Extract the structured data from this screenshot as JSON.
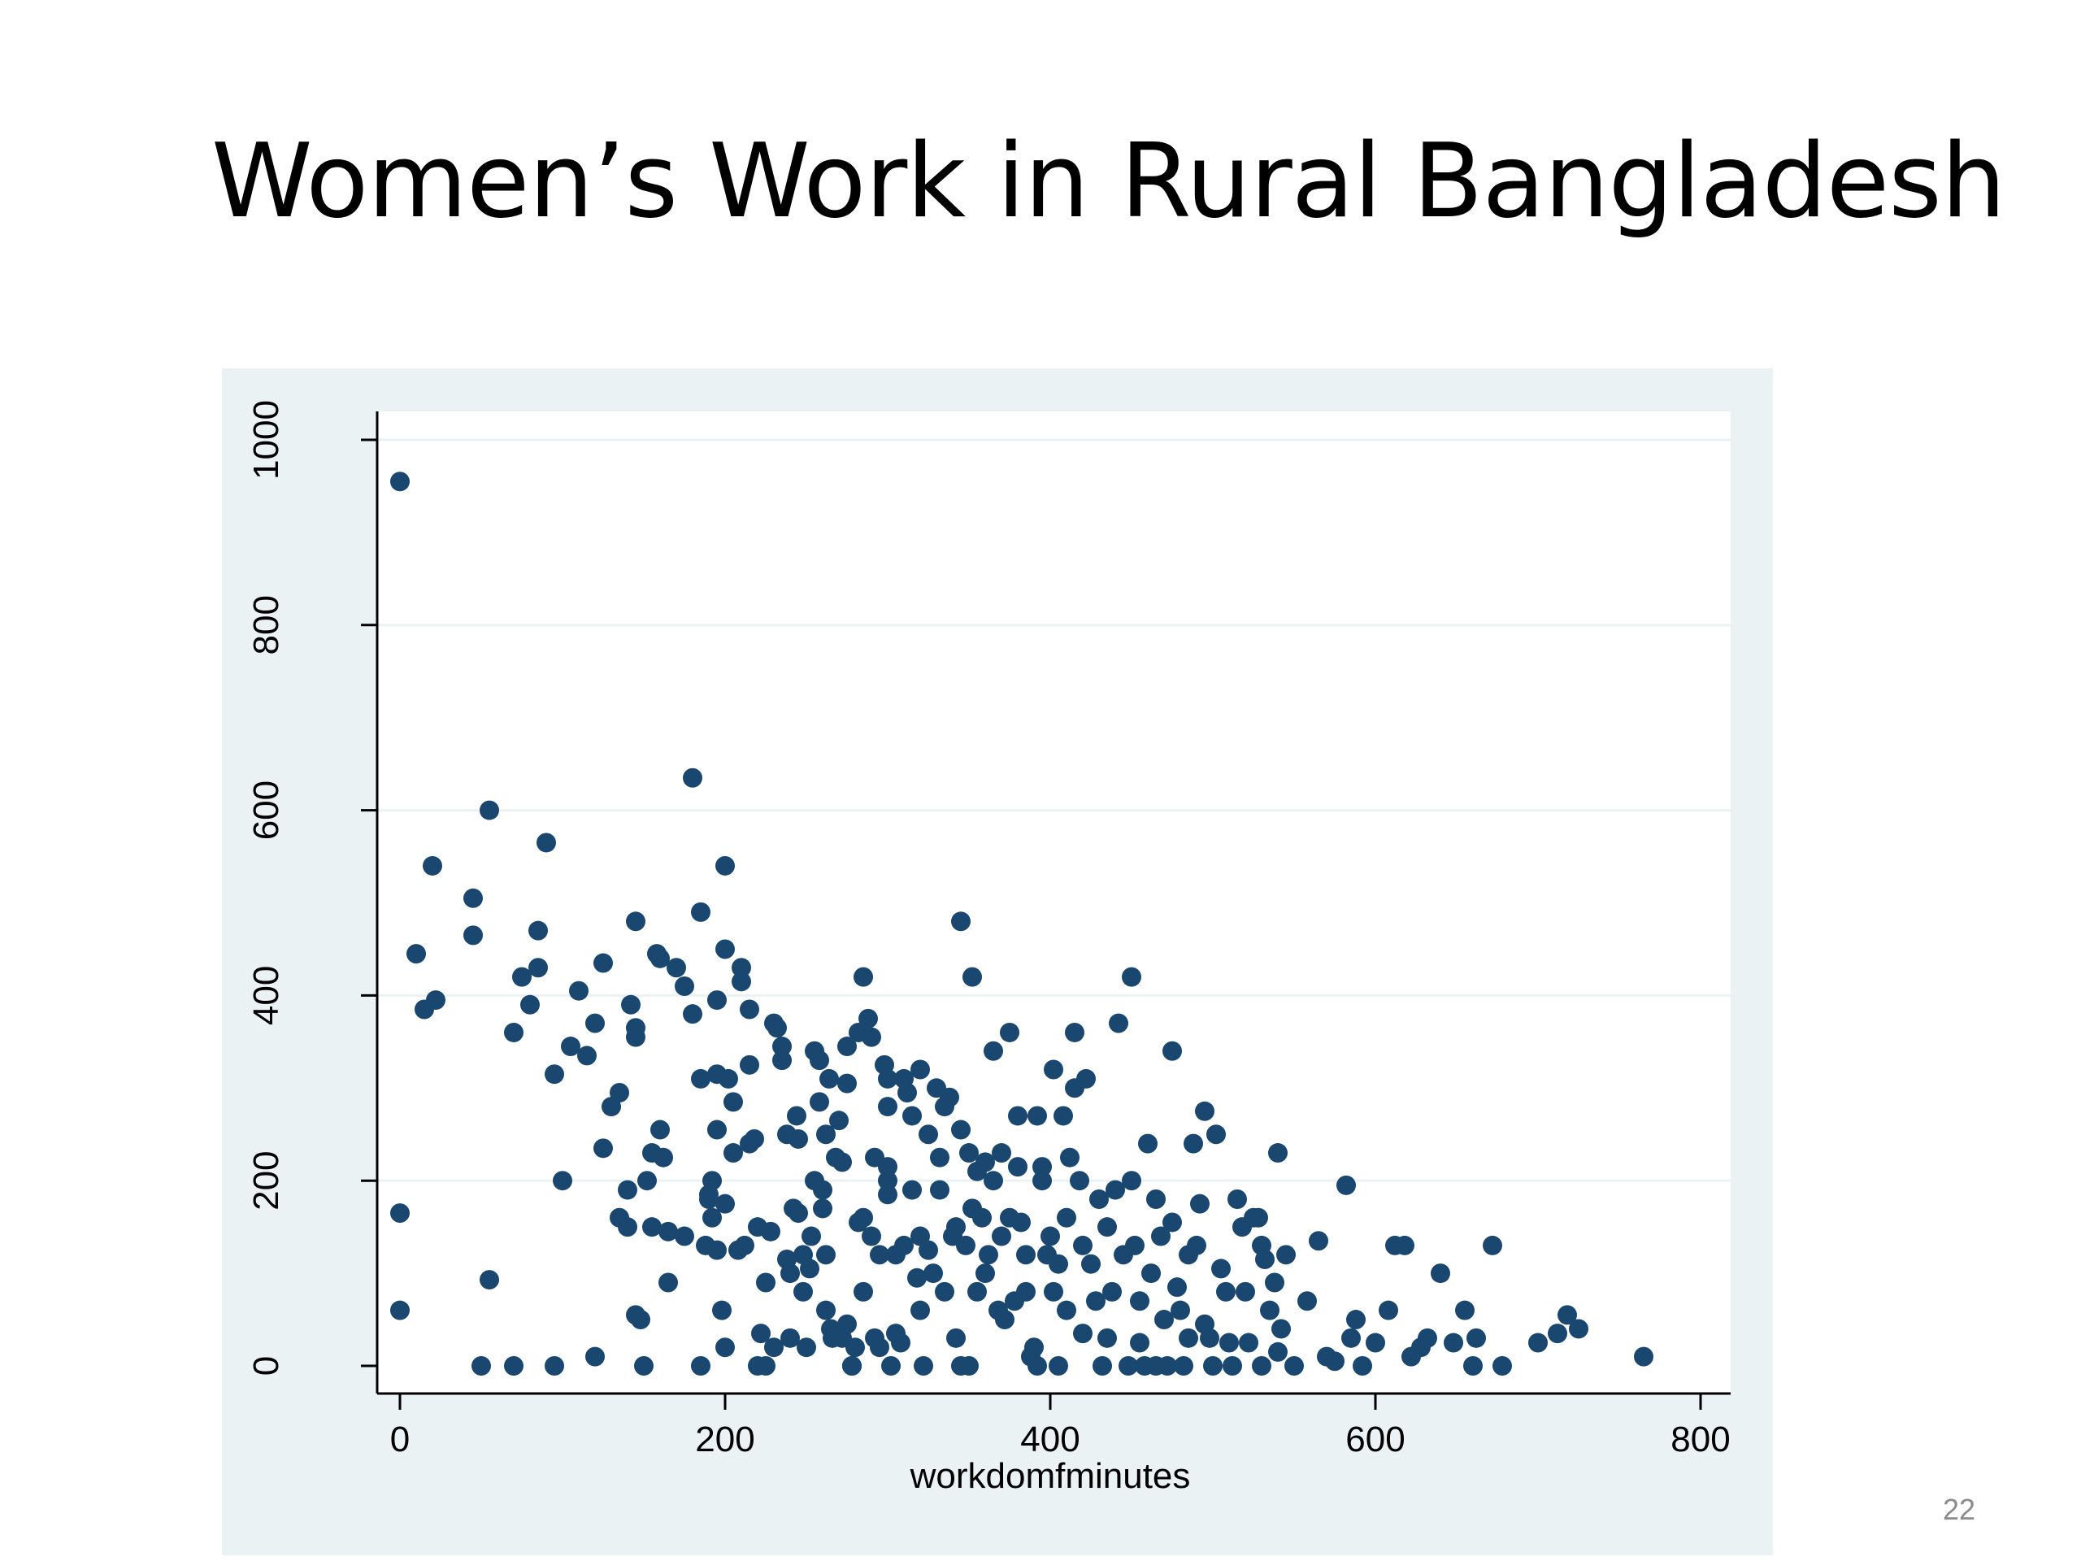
{
  "slide": {
    "title": "Women’s Work in Rural Bangladesh",
    "page_number": "22"
  },
  "colors": {
    "frame_background": "#eaf2f3",
    "plot_background": "#ffffff",
    "marker": "#1a476f",
    "gridline": "#eaf2f3",
    "axis": "#000000"
  },
  "chart_data": {
    "type": "scatter",
    "xlabel": "workdomfminutes",
    "ylabel": "",
    "xlim": [
      0,
      800
    ],
    "ylim": [
      0,
      1000
    ],
    "xticks": [
      0,
      200,
      400,
      600,
      800
    ],
    "yticks": [
      0,
      200,
      400,
      600,
      800,
      1000
    ],
    "xtick_labels": [
      "0",
      "200",
      "400",
      "600",
      "800"
    ],
    "ytick_labels": [
      "0",
      "200",
      "400",
      "600",
      "800",
      "1000"
    ],
    "grid": true,
    "legend": "none",
    "marker": "filled-circle",
    "points": [
      [
        0,
        955
      ],
      [
        0,
        165
      ],
      [
        0,
        60
      ],
      [
        10,
        445
      ],
      [
        15,
        385
      ],
      [
        20,
        540
      ],
      [
        22,
        395
      ],
      [
        45,
        505
      ],
      [
        45,
        465
      ],
      [
        55,
        600
      ],
      [
        55,
        93
      ],
      [
        50,
        0
      ],
      [
        70,
        0
      ],
      [
        70,
        360
      ],
      [
        75,
        420
      ],
      [
        80,
        390
      ],
      [
        85,
        430
      ],
      [
        85,
        470
      ],
      [
        90,
        565
      ],
      [
        95,
        315
      ],
      [
        95,
        0
      ],
      [
        100,
        200
      ],
      [
        105,
        345
      ],
      [
        110,
        405
      ],
      [
        115,
        335
      ],
      [
        120,
        10
      ],
      [
        120,
        370
      ],
      [
        125,
        435
      ],
      [
        125,
        235
      ],
      [
        130,
        280
      ],
      [
        135,
        295
      ],
      [
        135,
        160
      ],
      [
        140,
        150
      ],
      [
        140,
        190
      ],
      [
        142,
        390
      ],
      [
        145,
        355
      ],
      [
        145,
        365
      ],
      [
        145,
        480
      ],
      [
        145,
        55
      ],
      [
        148,
        50
      ],
      [
        150,
        0
      ],
      [
        152,
        200
      ],
      [
        155,
        150
      ],
      [
        155,
        230
      ],
      [
        158,
        445
      ],
      [
        160,
        255
      ],
      [
        160,
        440
      ],
      [
        162,
        225
      ],
      [
        165,
        145
      ],
      [
        165,
        90
      ],
      [
        170,
        430
      ],
      [
        175,
        140
      ],
      [
        175,
        410
      ],
      [
        180,
        635
      ],
      [
        180,
        380
      ],
      [
        185,
        490
      ],
      [
        185,
        310
      ],
      [
        185,
        0
      ],
      [
        188,
        130
      ],
      [
        190,
        180
      ],
      [
        190,
        185
      ],
      [
        192,
        200
      ],
      [
        192,
        160
      ],
      [
        195,
        395
      ],
      [
        195,
        315
      ],
      [
        195,
        255
      ],
      [
        195,
        125
      ],
      [
        198,
        60
      ],
      [
        200,
        450
      ],
      [
        200,
        20
      ],
      [
        200,
        540
      ],
      [
        200,
        175
      ],
      [
        202,
        310
      ],
      [
        205,
        285
      ],
      [
        205,
        230
      ],
      [
        208,
        125
      ],
      [
        210,
        430
      ],
      [
        210,
        415
      ],
      [
        212,
        130
      ],
      [
        215,
        385
      ],
      [
        215,
        240
      ],
      [
        215,
        325
      ],
      [
        218,
        245
      ],
      [
        220,
        150
      ],
      [
        220,
        0
      ],
      [
        222,
        35
      ],
      [
        225,
        90
      ],
      [
        225,
        0
      ],
      [
        228,
        145
      ],
      [
        230,
        370
      ],
      [
        230,
        20
      ],
      [
        232,
        365
      ],
      [
        235,
        345
      ],
      [
        235,
        330
      ],
      [
        238,
        250
      ],
      [
        238,
        115
      ],
      [
        240,
        100
      ],
      [
        240,
        30
      ],
      [
        242,
        170
      ],
      [
        244,
        270
      ],
      [
        245,
        245
      ],
      [
        245,
        165
      ],
      [
        248,
        80
      ],
      [
        248,
        120
      ],
      [
        250,
        20
      ],
      [
        252,
        105
      ],
      [
        253,
        140
      ],
      [
        255,
        340
      ],
      [
        255,
        200
      ],
      [
        258,
        330
      ],
      [
        258,
        285
      ],
      [
        260,
        170
      ],
      [
        260,
        190
      ],
      [
        262,
        250
      ],
      [
        262,
        120
      ],
      [
        262,
        60
      ],
      [
        264,
        310
      ],
      [
        265,
        40
      ],
      [
        266,
        30
      ],
      [
        268,
        225
      ],
      [
        270,
        265
      ],
      [
        272,
        220
      ],
      [
        272,
        30
      ],
      [
        275,
        345
      ],
      [
        275,
        305
      ],
      [
        275,
        45
      ],
      [
        278,
        0
      ],
      [
        278,
        0
      ],
      [
        280,
        20
      ],
      [
        282,
        360
      ],
      [
        282,
        155
      ],
      [
        285,
        160
      ],
      [
        285,
        80
      ],
      [
        285,
        420
      ],
      [
        288,
        375
      ],
      [
        290,
        355
      ],
      [
        290,
        140
      ],
      [
        292,
        225
      ],
      [
        292,
        30
      ],
      [
        295,
        20
      ],
      [
        295,
        120
      ],
      [
        298,
        325
      ],
      [
        300,
        310
      ],
      [
        300,
        280
      ],
      [
        300,
        215
      ],
      [
        300,
        200
      ],
      [
        300,
        185
      ],
      [
        302,
        0
      ],
      [
        305,
        35
      ],
      [
        305,
        120
      ],
      [
        308,
        25
      ],
      [
        310,
        310
      ],
      [
        310,
        130
      ],
      [
        312,
        295
      ],
      [
        315,
        190
      ],
      [
        315,
        270
      ],
      [
        318,
        95
      ],
      [
        320,
        320
      ],
      [
        320,
        140
      ],
      [
        320,
        60
      ],
      [
        322,
        0
      ],
      [
        325,
        250
      ],
      [
        325,
        125
      ],
      [
        328,
        100
      ],
      [
        330,
        300
      ],
      [
        332,
        225
      ],
      [
        332,
        190
      ],
      [
        335,
        280
      ],
      [
        335,
        80
      ],
      [
        338,
        290
      ],
      [
        340,
        140
      ],
      [
        342,
        150
      ],
      [
        342,
        30
      ],
      [
        345,
        255
      ],
      [
        345,
        480
      ],
      [
        345,
        0
      ],
      [
        348,
        130
      ],
      [
        350,
        230
      ],
      [
        350,
        0
      ],
      [
        352,
        420
      ],
      [
        352,
        170
      ],
      [
        355,
        210
      ],
      [
        355,
        80
      ],
      [
        358,
        160
      ],
      [
        360,
        220
      ],
      [
        360,
        100
      ],
      [
        362,
        120
      ],
      [
        365,
        200
      ],
      [
        365,
        340
      ],
      [
        368,
        60
      ],
      [
        370,
        140
      ],
      [
        370,
        230
      ],
      [
        372,
        50
      ],
      [
        375,
        360
      ],
      [
        375,
        160
      ],
      [
        378,
        70
      ],
      [
        380,
        270
      ],
      [
        380,
        215
      ],
      [
        382,
        155
      ],
      [
        385,
        120
      ],
      [
        385,
        80
      ],
      [
        388,
        10
      ],
      [
        390,
        20
      ],
      [
        392,
        270
      ],
      [
        392,
        0
      ],
      [
        395,
        200
      ],
      [
        395,
        215
      ],
      [
        398,
        120
      ],
      [
        400,
        140
      ],
      [
        402,
        320
      ],
      [
        402,
        80
      ],
      [
        405,
        110
      ],
      [
        405,
        0
      ],
      [
        408,
        270
      ],
      [
        410,
        160
      ],
      [
        410,
        60
      ],
      [
        412,
        225
      ],
      [
        415,
        360
      ],
      [
        415,
        300
      ],
      [
        418,
        200
      ],
      [
        420,
        130
      ],
      [
        420,
        35
      ],
      [
        422,
        310
      ],
      [
        425,
        110
      ],
      [
        428,
        70
      ],
      [
        430,
        180
      ],
      [
        432,
        0
      ],
      [
        435,
        150
      ],
      [
        435,
        30
      ],
      [
        438,
        80
      ],
      [
        440,
        190
      ],
      [
        442,
        370
      ],
      [
        445,
        120
      ],
      [
        448,
        0
      ],
      [
        450,
        200
      ],
      [
        450,
        420
      ],
      [
        452,
        130
      ],
      [
        455,
        70
      ],
      [
        455,
        25
      ],
      [
        458,
        0
      ],
      [
        460,
        240
      ],
      [
        462,
        100
      ],
      [
        465,
        180
      ],
      [
        465,
        0
      ],
      [
        468,
        140
      ],
      [
        470,
        50
      ],
      [
        472,
        0
      ],
      [
        475,
        340
      ],
      [
        475,
        155
      ],
      [
        478,
        85
      ],
      [
        480,
        60
      ],
      [
        482,
        0
      ],
      [
        485,
        120
      ],
      [
        485,
        30
      ],
      [
        488,
        240
      ],
      [
        490,
        130
      ],
      [
        492,
        175
      ],
      [
        495,
        275
      ],
      [
        495,
        45
      ],
      [
        498,
        30
      ],
      [
        500,
        0
      ],
      [
        502,
        250
      ],
      [
        505,
        105
      ],
      [
        508,
        80
      ],
      [
        510,
        25
      ],
      [
        512,
        0
      ],
      [
        515,
        180
      ],
      [
        518,
        150
      ],
      [
        520,
        80
      ],
      [
        522,
        25
      ],
      [
        525,
        160
      ],
      [
        528,
        160
      ],
      [
        530,
        130
      ],
      [
        530,
        0
      ],
      [
        532,
        115
      ],
      [
        535,
        60
      ],
      [
        538,
        90
      ],
      [
        540,
        230
      ],
      [
        540,
        15
      ],
      [
        542,
        40
      ],
      [
        545,
        120
      ],
      [
        550,
        0
      ],
      [
        558,
        70
      ],
      [
        565,
        135
      ],
      [
        570,
        10
      ],
      [
        575,
        5
      ],
      [
        582,
        195
      ],
      [
        585,
        30
      ],
      [
        588,
        50
      ],
      [
        592,
        0
      ],
      [
        600,
        25
      ],
      [
        608,
        60
      ],
      [
        612,
        130
      ],
      [
        618,
        130
      ],
      [
        622,
        10
      ],
      [
        628,
        20
      ],
      [
        632,
        30
      ],
      [
        640,
        100
      ],
      [
        648,
        25
      ],
      [
        655,
        60
      ],
      [
        660,
        0
      ],
      [
        662,
        30
      ],
      [
        672,
        130
      ],
      [
        678,
        0
      ],
      [
        700,
        25
      ],
      [
        712,
        35
      ],
      [
        718,
        55
      ],
      [
        725,
        40
      ],
      [
        765,
        10
      ]
    ]
  }
}
